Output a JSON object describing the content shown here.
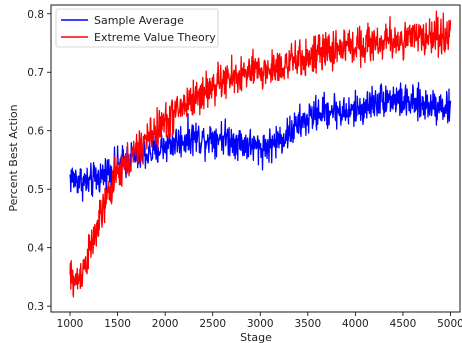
{
  "chart_data": {
    "type": "line",
    "title": "",
    "xlabel": "Stage",
    "ylabel": "Percent Best Action",
    "xlim": [
      800,
      5100
    ],
    "ylim": [
      0.29,
      0.815
    ],
    "xticks": [
      1000,
      1500,
      2000,
      2500,
      3000,
      3500,
      4000,
      4500,
      5000
    ],
    "yticks": [
      0.3,
      0.4,
      0.5,
      0.6,
      0.7,
      0.8
    ],
    "xtick_labels": [
      "1000",
      "1500",
      "2000",
      "2500",
      "3000",
      "3500",
      "4000",
      "4500",
      "5000"
    ],
    "ytick_labels": [
      "0.3",
      "0.4",
      "0.5",
      "0.6",
      "0.7",
      "0.8"
    ],
    "grid": false,
    "legend_position": "top-left",
    "x_range": [
      1000,
      5000
    ],
    "series": [
      {
        "name": "Sample Average",
        "color": "#0000ff",
        "x": [
          1000,
          1100,
          1200,
          1300,
          1400,
          1500,
          1600,
          1700,
          1800,
          1900,
          2000,
          2100,
          2200,
          2300,
          2400,
          2500,
          2600,
          2700,
          2800,
          2900,
          3000,
          3100,
          3200,
          3300,
          3400,
          3500,
          3600,
          3700,
          3800,
          3900,
          4000,
          4100,
          4200,
          4300,
          4400,
          4500,
          4600,
          4700,
          4800,
          4900,
          5000
        ],
        "y": [
          0.52,
          0.515,
          0.51,
          0.52,
          0.53,
          0.54,
          0.55,
          0.555,
          0.56,
          0.565,
          0.575,
          0.58,
          0.585,
          0.59,
          0.585,
          0.59,
          0.59,
          0.585,
          0.58,
          0.575,
          0.57,
          0.575,
          0.585,
          0.595,
          0.61,
          0.62,
          0.63,
          0.635,
          0.635,
          0.63,
          0.635,
          0.64,
          0.65,
          0.655,
          0.655,
          0.65,
          0.645,
          0.645,
          0.645,
          0.645,
          0.635
        ],
        "noise": 0.018
      },
      {
        "name": "Extreme Value Theory",
        "color": "#ff0000",
        "x": [
          1000,
          1050,
          1100,
          1200,
          1300,
          1400,
          1500,
          1600,
          1700,
          1800,
          1900,
          2000,
          2100,
          2200,
          2300,
          2400,
          2500,
          2600,
          2700,
          2800,
          2900,
          3000,
          3100,
          3200,
          3300,
          3400,
          3500,
          3600,
          3700,
          3800,
          3900,
          4000,
          4100,
          4200,
          4300,
          4400,
          4500,
          4600,
          4700,
          4800,
          4900,
          5000
        ],
        "y": [
          0.35,
          0.34,
          0.35,
          0.39,
          0.44,
          0.49,
          0.525,
          0.545,
          0.565,
          0.585,
          0.6,
          0.615,
          0.63,
          0.645,
          0.655,
          0.665,
          0.675,
          0.685,
          0.69,
          0.695,
          0.7,
          0.7,
          0.705,
          0.71,
          0.715,
          0.72,
          0.725,
          0.73,
          0.735,
          0.74,
          0.745,
          0.745,
          0.75,
          0.75,
          0.752,
          0.755,
          0.755,
          0.757,
          0.76,
          0.762,
          0.765,
          0.765
        ],
        "noise": 0.02
      }
    ]
  }
}
